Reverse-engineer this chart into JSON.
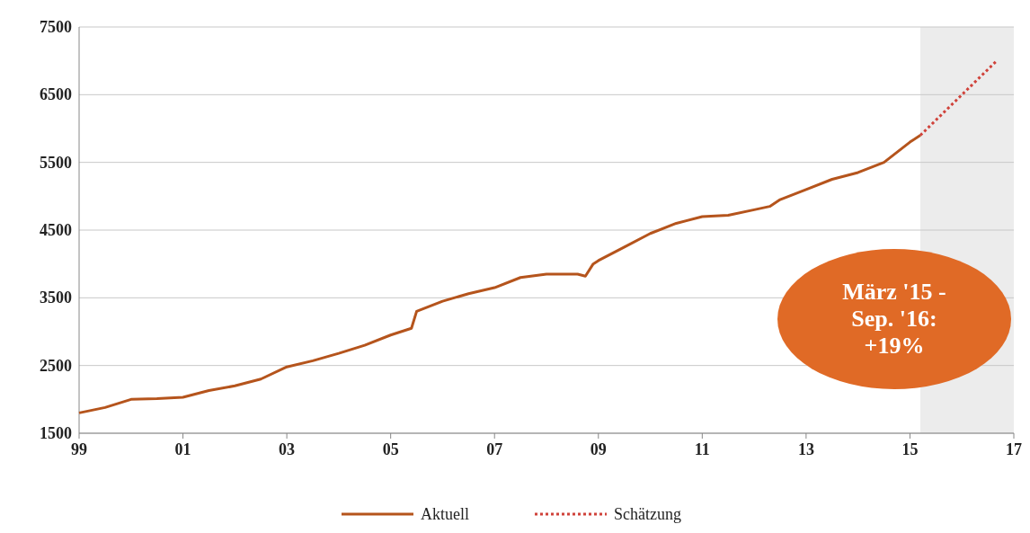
{
  "chart_data": {
    "type": "line",
    "xlim": [
      1999,
      2017
    ],
    "ylim": [
      1500,
      7500
    ],
    "xticks": [
      {
        "value": 1999,
        "label": "99"
      },
      {
        "value": 2001,
        "label": "01"
      },
      {
        "value": 2003,
        "label": "03"
      },
      {
        "value": 2005,
        "label": "05"
      },
      {
        "value": 2007,
        "label": "07"
      },
      {
        "value": 2009,
        "label": "09"
      },
      {
        "value": 2011,
        "label": "11"
      },
      {
        "value": 2013,
        "label": "13"
      },
      {
        "value": 2015,
        "label": "15"
      },
      {
        "value": 2017,
        "label": "17"
      }
    ],
    "yticks": [
      1500,
      2500,
      3500,
      4500,
      5500,
      6500,
      7500
    ],
    "grid": "y",
    "legend": "bottom",
    "bands": [
      {
        "axis": "x",
        "from": 2015.2,
        "to": 2017,
        "color": "#ececec"
      }
    ],
    "series": [
      {
        "name": "Aktuell",
        "color": "#b5541c",
        "line_style": "solid",
        "x": [
          1999,
          1999.5,
          2000,
          2000.5,
          2001,
          2001.5,
          2002,
          2002.5,
          2003,
          2003.5,
          2004,
          2004.5,
          2005,
          2005.4,
          2005.5,
          2006,
          2006.5,
          2007,
          2007.5,
          2008,
          2008.6,
          2008.75,
          2008.9,
          2009,
          2009.5,
          2010,
          2010.5,
          2011,
          2011.5,
          2012,
          2012.3,
          2012.5,
          2013,
          2013.5,
          2014,
          2014.5,
          2015,
          2015.2
        ],
        "values": [
          1800,
          1880,
          2000,
          2010,
          2030,
          2130,
          2200,
          2300,
          2480,
          2570,
          2680,
          2800,
          2950,
          3050,
          3300,
          3450,
          3560,
          3650,
          3800,
          3850,
          3850,
          3820,
          4000,
          4050,
          4250,
          4450,
          4600,
          4700,
          4720,
          4800,
          4850,
          4950,
          5100,
          5250,
          5350,
          5500,
          5800,
          5900
        ]
      },
      {
        "name": "Schätzung",
        "color": "#d0423a",
        "line_style": "dotted",
        "x": [
          2015.2,
          2016.67
        ],
        "values": [
          5900,
          7000
        ]
      }
    ],
    "annotations": [
      "März '15 -\nSep. '16:\n+19%"
    ]
  }
}
